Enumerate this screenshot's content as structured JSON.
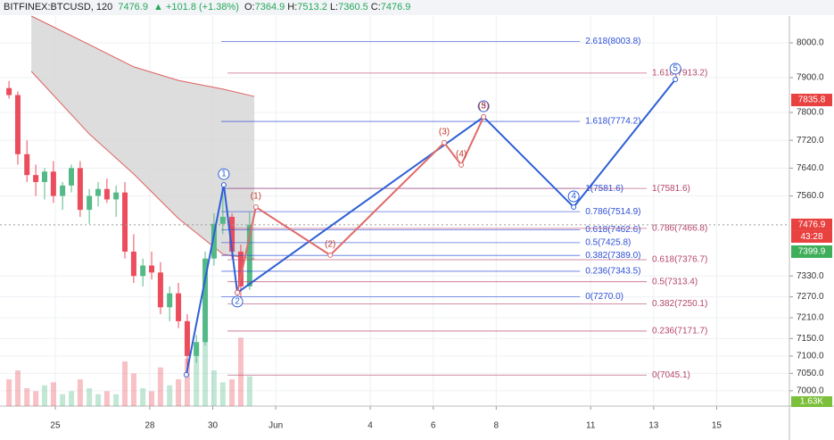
{
  "header": {
    "symbol": "BITFINEX:BTCUSD, 120",
    "last": "7476.9",
    "change": "▲ +101.8 (+1.38%)",
    "ohlc": [
      {
        "key": "O:",
        "value": "7364.9"
      },
      {
        "key": "H:",
        "value": "7513.2"
      },
      {
        "key": "L:",
        "value": "7360.5"
      },
      {
        "key": "C:",
        "value": "7476.9"
      }
    ]
  },
  "chart_data": {
    "type": "candlestick",
    "xlim": [
      -1.756,
      23.31
    ],
    "xticks": [
      {
        "value": 0,
        "label": "25"
      },
      {
        "value": 3,
        "label": "28"
      },
      {
        "value": 5,
        "label": "30"
      },
      {
        "value": 7,
        "label": "Jun"
      },
      {
        "value": 10,
        "label": "4"
      },
      {
        "value": 12,
        "label": "6"
      },
      {
        "value": 14,
        "label": "8"
      },
      {
        "value": 17,
        "label": "11"
      },
      {
        "value": 19,
        "label": "13"
      },
      {
        "value": 21,
        "label": "15"
      }
    ],
    "ylim": [
      6956,
      8077
    ],
    "yticks": [
      {
        "value": 8000,
        "label": "8000.0"
      },
      {
        "value": 7900,
        "label": "7900.0"
      },
      {
        "value": 7800,
        "label": "7800.0"
      },
      {
        "value": 7720,
        "label": "7720.0"
      },
      {
        "value": 7640,
        "label": "7640.0"
      },
      {
        "value": 7560,
        "label": "7560.0"
      },
      {
        "value": 7330,
        "label": "7330.0"
      },
      {
        "value": 7270,
        "label": "7270.0"
      },
      {
        "value": 7210,
        "label": "7210.0"
      },
      {
        "value": 7150,
        "label": "7150.0"
      },
      {
        "value": 7100,
        "label": "7100.0"
      },
      {
        "value": 7050,
        "label": "7050.0"
      },
      {
        "value": 7000,
        "label": "7000.0"
      }
    ],
    "grid": true,
    "up_color": "#53b987",
    "down_color": "#eb4d5c",
    "vlim": [
      0,
      3000
    ],
    "candles": {
      "x": [
        -1.47,
        -1.19,
        -0.9,
        -0.62,
        -0.34,
        -0.06,
        0.23,
        0.51,
        0.79,
        1.08,
        1.36,
        1.64,
        1.93,
        2.21,
        2.49,
        2.78,
        3.06,
        3.34,
        3.63,
        3.91,
        4.19,
        4.48,
        4.76,
        5.04,
        5.32,
        5.61,
        5.89,
        6.17
      ],
      "open": [
        7870,
        7850,
        7680,
        7620,
        7600,
        7630,
        7560,
        7590,
        7640,
        7520,
        7560,
        7580,
        7550,
        7570,
        7400,
        7330,
        7360,
        7340,
        7240,
        7280,
        7200,
        7100,
        7140,
        7380,
        7480,
        7500,
        7400,
        7300
      ],
      "high": [
        7890,
        7860,
        7720,
        7650,
        7640,
        7660,
        7600,
        7650,
        7660,
        7580,
        7600,
        7610,
        7590,
        7600,
        7450,
        7380,
        7400,
        7370,
        7300,
        7310,
        7220,
        7160,
        7400,
        7510,
        7592,
        7510,
        7420,
        7513
      ],
      "low": [
        7840,
        7650,
        7600,
        7560,
        7550,
        7540,
        7520,
        7570,
        7500,
        7480,
        7530,
        7540,
        7500,
        7380,
        7310,
        7300,
        7320,
        7220,
        7200,
        7180,
        7045,
        7080,
        7130,
        7360,
        7450,
        7380,
        7270,
        7290
      ],
      "close": [
        7850,
        7680,
        7620,
        7600,
        7630,
        7560,
        7590,
        7640,
        7520,
        7560,
        7580,
        7550,
        7570,
        7400,
        7330,
        7360,
        7340,
        7240,
        7280,
        7200,
        7100,
        7140,
        7380,
        7480,
        7500,
        7400,
        7300,
        7476.9
      ],
      "volume": [
        900,
        1200,
        600,
        500,
        700,
        800,
        400,
        500,
        900,
        600,
        400,
        500,
        400,
        1500,
        1100,
        600,
        500,
        1300,
        700,
        900,
        1600,
        2000,
        2400,
        1200,
        800,
        900,
        2300,
        1000
      ]
    },
    "cloud": {
      "color": "#d4d4d4",
      "edge": "#e0605f",
      "x": [
        -0.76,
        1.08,
        2.49,
        3.91,
        5.33,
        6.32
      ],
      "upper": [
        8077,
        7995,
        7931,
        7892,
        7867,
        7846
      ],
      "lower": [
        7918,
        7738,
        7623,
        7495,
        7392,
        7379
      ]
    },
    "fib_sets": [
      {
        "color": "#2d4fd6",
        "start": 5.27,
        "end": 16.66,
        "levels": [
          {
            "value": 8003.8,
            "label": "2.618(8003.8)"
          },
          {
            "value": 7774.2,
            "label": "1.618(7774.2)"
          },
          {
            "value": 7581.6,
            "label": "1(7581.6)"
          },
          {
            "value": 7514.9,
            "label": "0.786(7514.9)"
          },
          {
            "value": 7462.6,
            "label": "0.618(7462.6)"
          },
          {
            "value": 7425.8,
            "label": "0.5(7425.8)"
          },
          {
            "value": 7389.0,
            "label": "0.382(7389.0)"
          },
          {
            "value": 7343.5,
            "label": "0.236(7343.5)"
          },
          {
            "value": 7270.0,
            "label": "0(7270.0)"
          }
        ]
      },
      {
        "color": "#b5456a",
        "start": 5.47,
        "end": 18.78,
        "levels": [
          {
            "value": 7913.2,
            "label": "1.618(7913.2)"
          },
          {
            "value": 7581.6,
            "label": "1(7581.6)"
          },
          {
            "value": 7466.8,
            "label": "0.786(7466.8)"
          },
          {
            "value": 7376.7,
            "label": "0.618(7376.7)"
          },
          {
            "value": 7313.4,
            "label": "0.5(7313.4)"
          },
          {
            "value": 7250.1,
            "label": "0.382(7250.1)"
          },
          {
            "value": 7171.7,
            "label": "0.236(7171.7)"
          },
          {
            "value": 7045.1,
            "label": "0(7045.1)"
          }
        ]
      }
    ],
    "waves": [
      {
        "color": "#2d5fd6",
        "x": [
          4.16,
          5.35,
          5.78,
          13.6,
          16.46,
          19.69
        ],
        "y": [
          7046,
          7592,
          7282,
          7787,
          7528,
          7895
        ],
        "labels": [
          null,
          "1",
          "2",
          "3",
          "4",
          "5"
        ]
      },
      {
        "color": "#e06a6a",
        "x": [
          5.78,
          6.37,
          8.73,
          12.35,
          12.89,
          13.6
        ],
        "y": [
          7282,
          7528,
          7390,
          7713,
          7649,
          7787
        ],
        "labels": [
          null,
          "(1)",
          "(2)",
          "(3)",
          "(4)",
          "(5)"
        ]
      }
    ],
    "badges": [
      {
        "value": 7835.8,
        "label": "7835.8",
        "color": "#e8413f"
      },
      {
        "value": 7476.9,
        "label": "7476.9",
        "color": "#e8413f"
      },
      {
        "value": 7399.9,
        "label": "7399.9",
        "color": "#3fae5a"
      }
    ],
    "countdown": "43:28",
    "volume_badge": "1.63K"
  }
}
